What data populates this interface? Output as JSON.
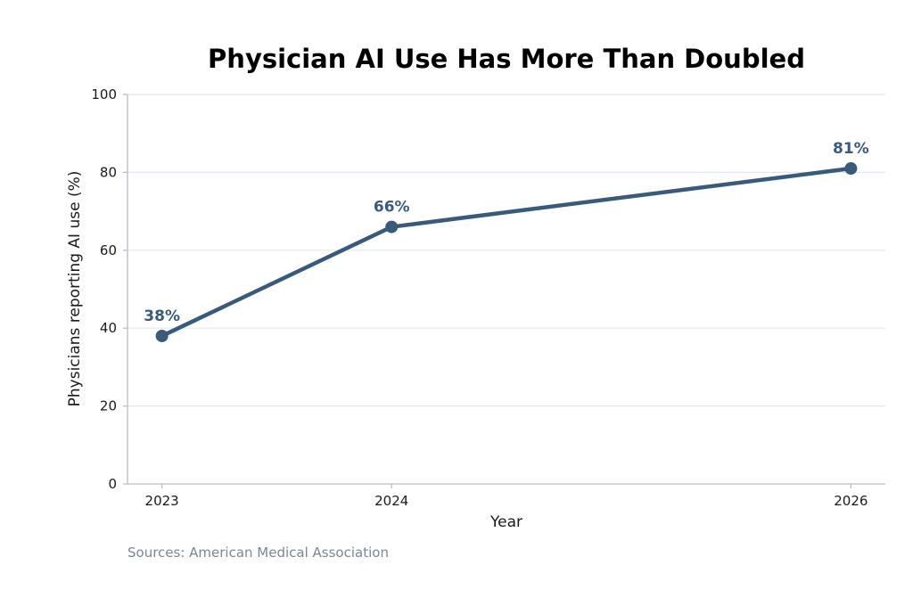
{
  "chart_data": {
    "type": "line",
    "title": "Physician AI Use Has More Than Doubled",
    "xlabel": "Year",
    "ylabel": "Physicians reporting AI use (%)",
    "x": [
      2023,
      2024,
      2026
    ],
    "x_tick_labels": [
      "2023",
      "2024",
      "2026"
    ],
    "xlim": [
      2022.85,
      2026.15
    ],
    "ylim": [
      0,
      100
    ],
    "y_ticks": [
      0,
      20,
      40,
      60,
      80,
      100
    ],
    "series": [
      {
        "values": [
          38,
          66,
          81
        ],
        "data_labels": [
          "38%",
          "66%",
          "81%"
        ]
      }
    ],
    "grid": "horizontal",
    "colors": {
      "line": "#3a5a7c",
      "grid": "#e3e7ee",
      "axis": "#b8bec9"
    }
  },
  "source_note": "Sources: American Medical Association"
}
